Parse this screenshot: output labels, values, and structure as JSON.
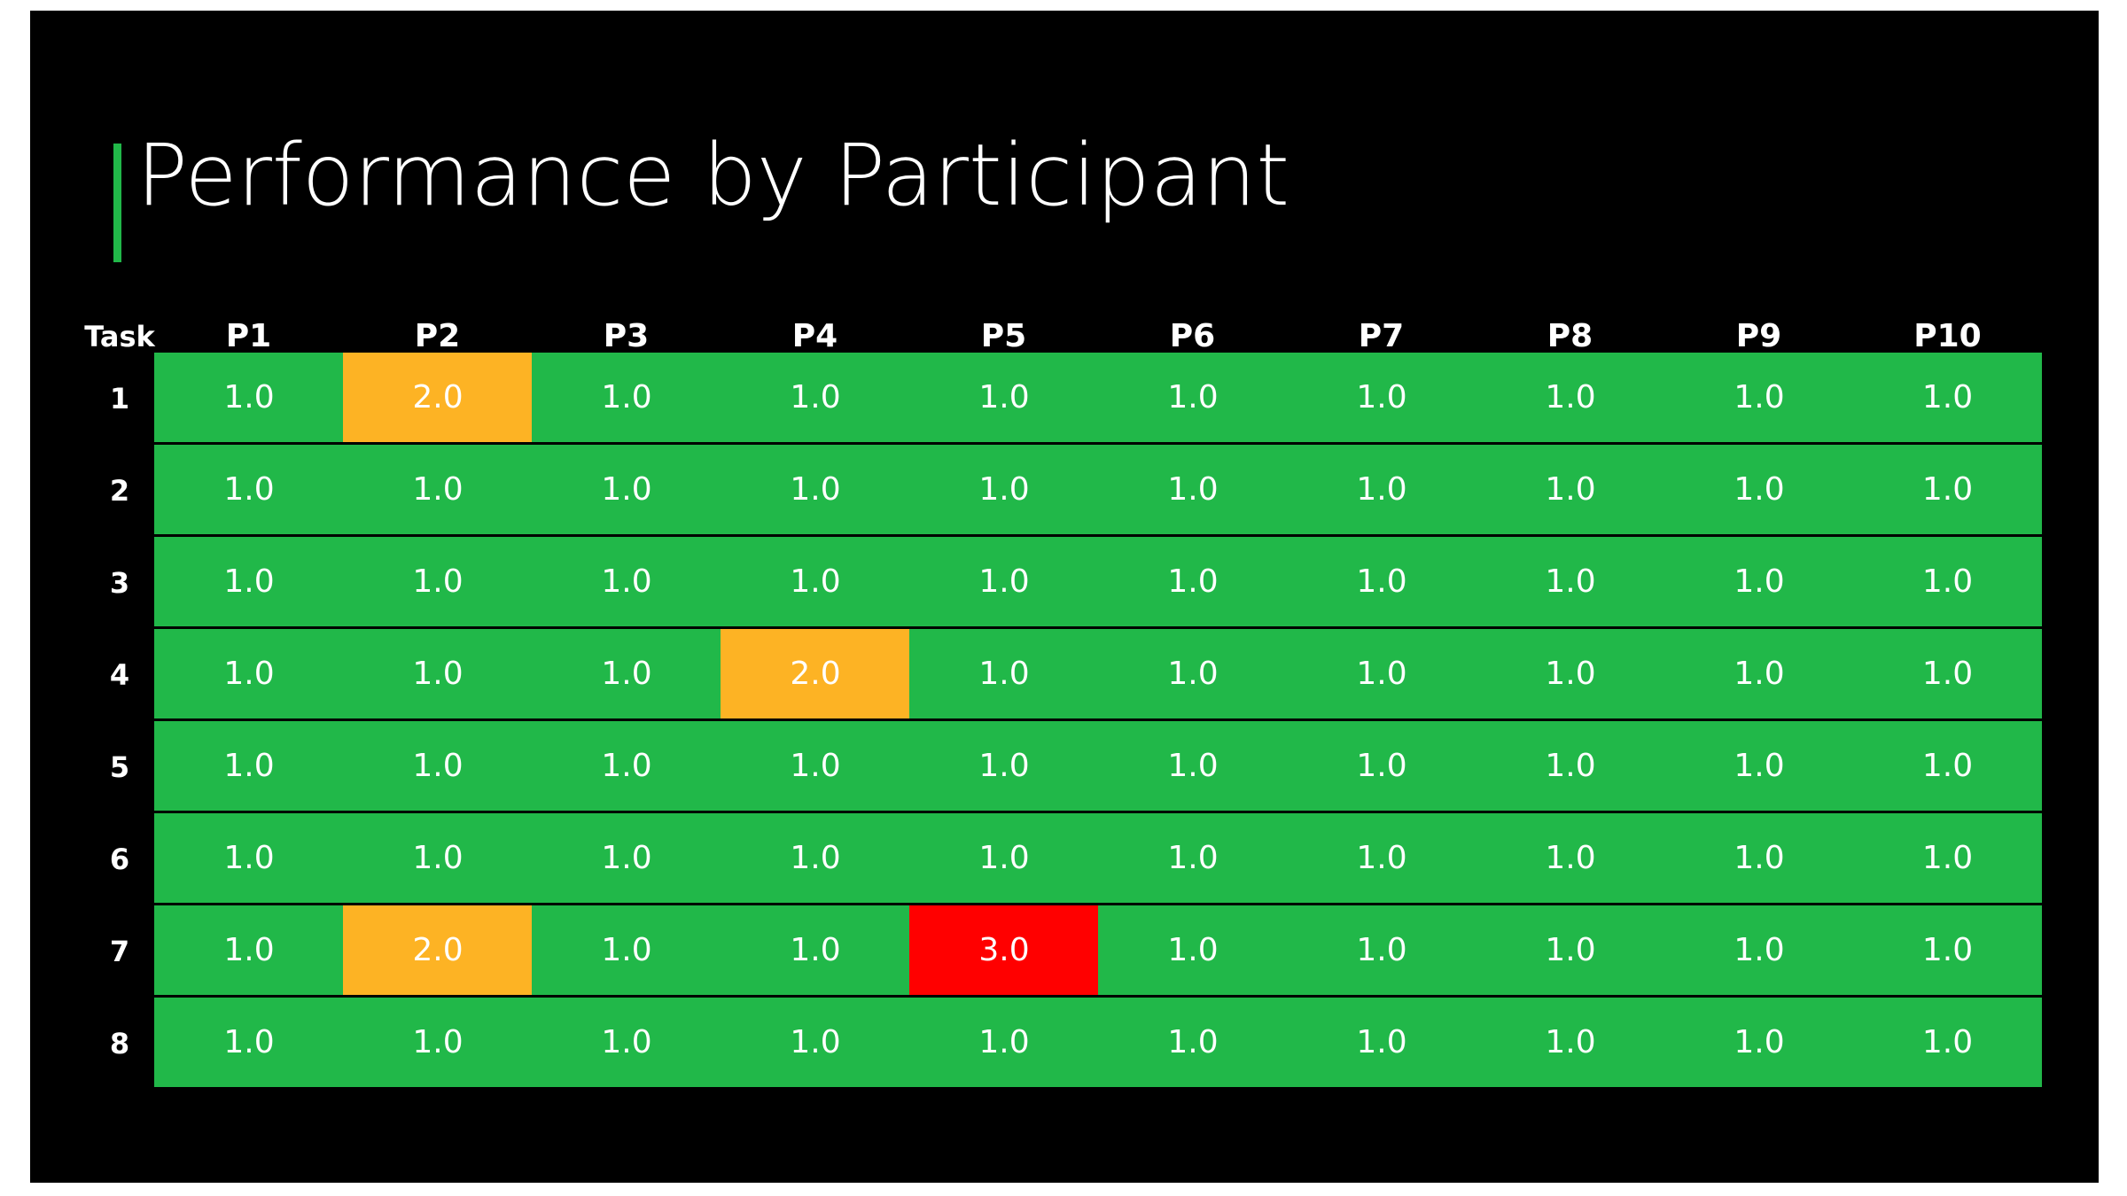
{
  "title": "Performance by Participant",
  "table": {
    "header": [
      "Task",
      "P1",
      "P2",
      "P3",
      "P4",
      "P5",
      "P6",
      "P7",
      "P8",
      "P9",
      "P10"
    ],
    "rows": [
      {
        "task": "1",
        "values": [
          "1.0",
          "2.0",
          "1.0",
          "1.0",
          "1.0",
          "1.0",
          "1.0",
          "1.0",
          "1.0",
          "1.0"
        ]
      },
      {
        "task": "2",
        "values": [
          "1.0",
          "1.0",
          "1.0",
          "1.0",
          "1.0",
          "1.0",
          "1.0",
          "1.0",
          "1.0",
          "1.0"
        ]
      },
      {
        "task": "3",
        "values": [
          "1.0",
          "1.0",
          "1.0",
          "1.0",
          "1.0",
          "1.0",
          "1.0",
          "1.0",
          "1.0",
          "1.0"
        ]
      },
      {
        "task": "4",
        "values": [
          "1.0",
          "1.0",
          "1.0",
          "2.0",
          "1.0",
          "1.0",
          "1.0",
          "1.0",
          "1.0",
          "1.0"
        ]
      },
      {
        "task": "5",
        "values": [
          "1.0",
          "1.0",
          "1.0",
          "1.0",
          "1.0",
          "1.0",
          "1.0",
          "1.0",
          "1.0",
          "1.0"
        ]
      },
      {
        "task": "6",
        "values": [
          "1.0",
          "1.0",
          "1.0",
          "1.0",
          "1.0",
          "1.0",
          "1.0",
          "1.0",
          "1.0",
          "1.0"
        ]
      },
      {
        "task": "7",
        "values": [
          "1.0",
          "2.0",
          "1.0",
          "1.0",
          "3.0",
          "1.0",
          "1.0",
          "1.0",
          "1.0",
          "1.0"
        ]
      },
      {
        "task": "8",
        "values": [
          "1.0",
          "1.0",
          "1.0",
          "1.0",
          "1.0",
          "1.0",
          "1.0",
          "1.0",
          "1.0",
          "1.0"
        ]
      }
    ],
    "status_colors": {
      "1.0": "#21b849",
      "2.0": "#fdb324",
      "3.0": "#ff0000"
    }
  }
}
